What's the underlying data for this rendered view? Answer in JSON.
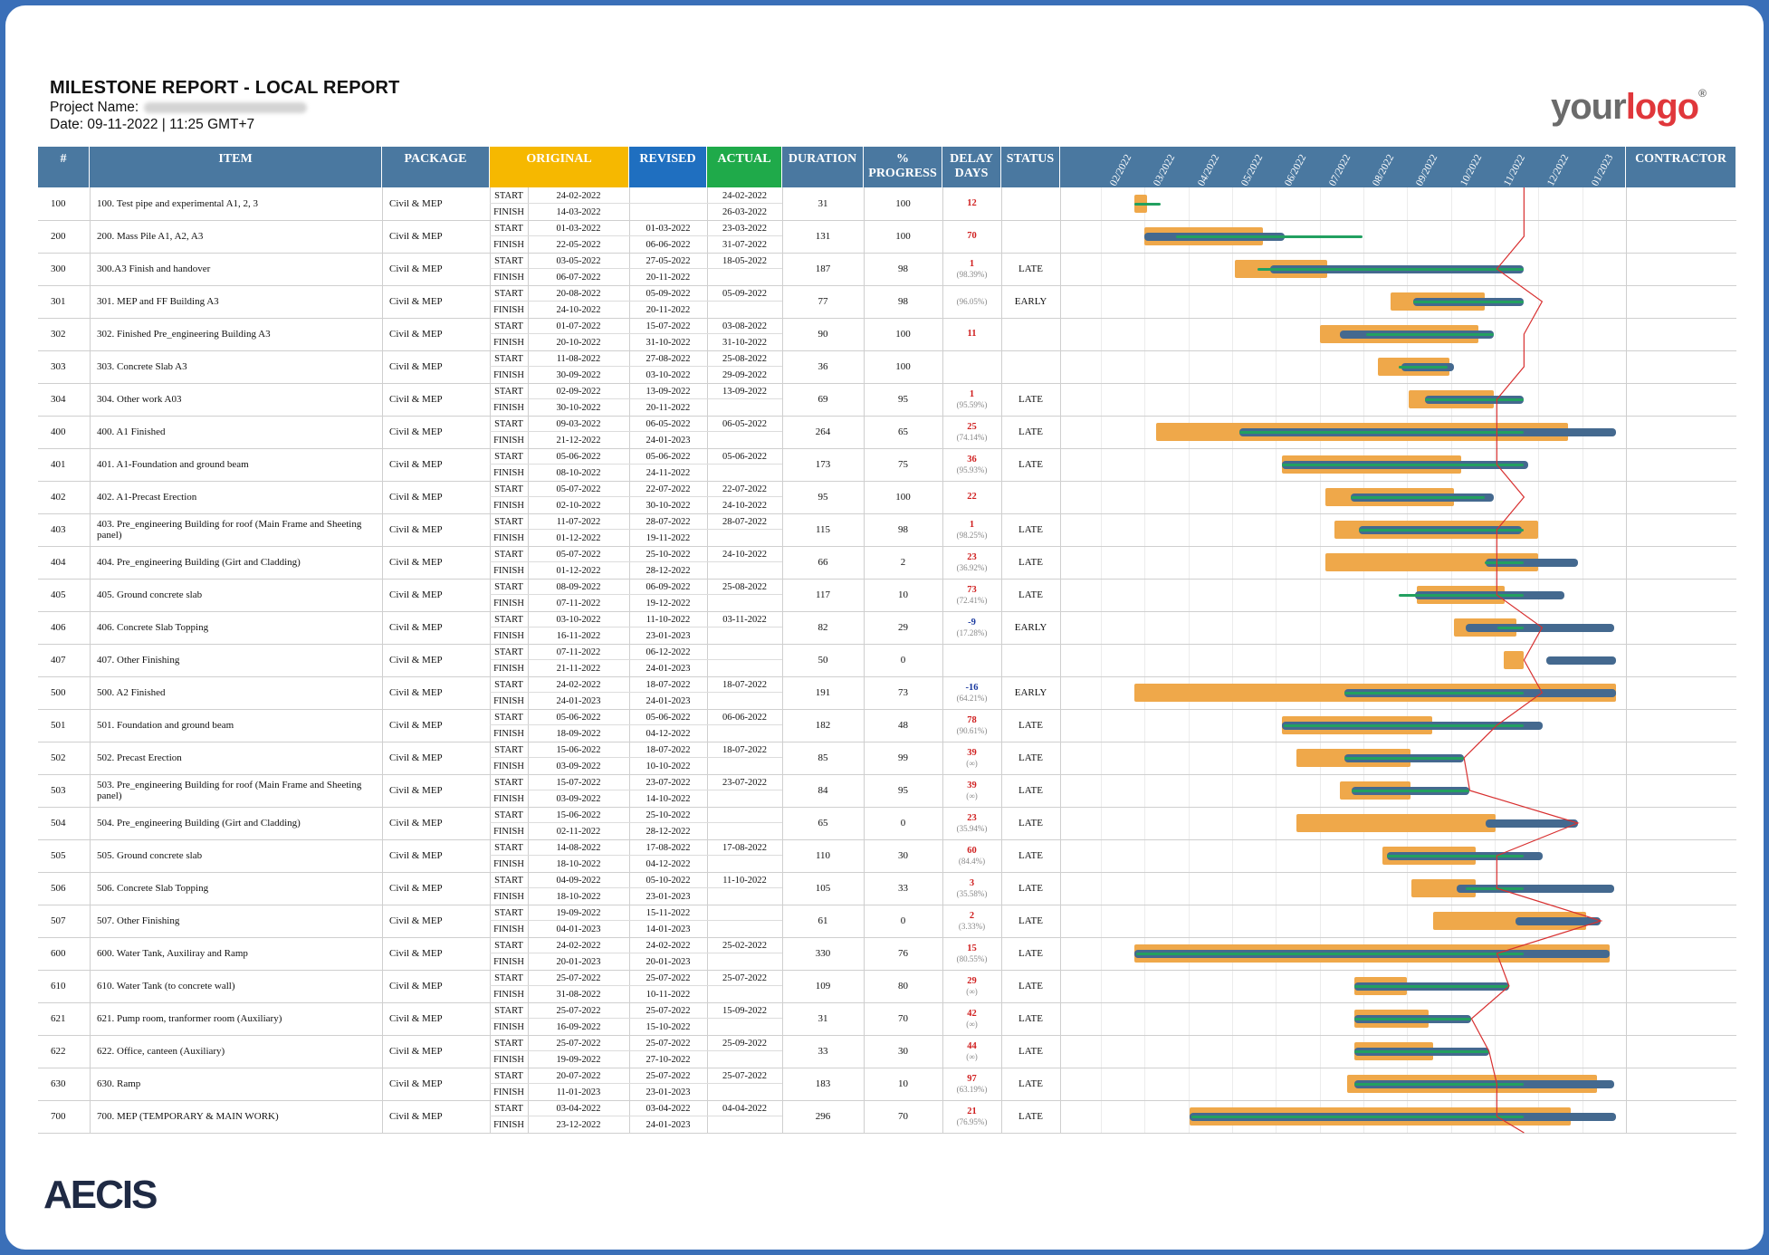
{
  "header": {
    "title": "MILESTONE REPORT - LOCAL REPORT",
    "project_label": "Project Name:",
    "date": "Date: 09-11-2022 | 11:25 GMT+7"
  },
  "logo": {
    "part1": "your",
    "part2": "logo",
    "mark": "®"
  },
  "footer_logo": "AECIS",
  "columns": {
    "num": "#",
    "item": "ITEM",
    "package": "PACKAGE",
    "original": "ORIGINAL",
    "revised": "REVISED",
    "actual": "ACTUAL",
    "duration": "DURATION",
    "progress": "% PROGRESS",
    "delay": "DELAY DAYS",
    "status": "STATUS",
    "contractor": "CONTRACTOR"
  },
  "colors": {
    "header_bg": "#4a78a0",
    "original_bg": "#f6b800",
    "revised_bg": "#1f6fc0",
    "actual_bg": "#1faa4a",
    "planned_bar": "#efa84a",
    "revised_bar": "#44698f",
    "actual_bar": "#22a060",
    "today_line": "#d83030",
    "late_text": "#d02020",
    "early_text": "#1a3aa0"
  },
  "months": [
    "02/2022",
    "03/2022",
    "04/2022",
    "05/2022",
    "06/2022",
    "07/2022",
    "08/2022",
    "09/2022",
    "10/2022",
    "11/2022",
    "12/2022",
    "01/2023"
  ],
  "labels": {
    "start": "START",
    "finish": "FINISH"
  },
  "rows": [
    {
      "num": "100",
      "item": "100. Test pipe and experimental A1, 2, 3",
      "package": "Civil & MEP",
      "os": "24-02-2022",
      "of": "14-03-2022",
      "rs": "",
      "rf": "",
      "as": "24-02-2022",
      "af": "26-03-2022",
      "dur": "31",
      "prog": "100",
      "delay": "12",
      "dpct": "",
      "status": "",
      "g": [
        0.77,
        1.05,
        null,
        null,
        0.77,
        1.37
      ]
    },
    {
      "num": "200",
      "item": "200. Mass Pile A1, A2, A3",
      "package": "Civil & MEP",
      "os": "01-03-2022",
      "of": "22-05-2022",
      "rs": "01-03-2022",
      "rf": "06-06-2022",
      "as": "23-03-2022",
      "af": "31-07-2022",
      "dur": "131",
      "prog": "100",
      "delay": "70",
      "dpct": "",
      "status": "",
      "g": [
        1.0,
        3.7,
        1.0,
        4.2,
        1.72,
        5.97
      ]
    },
    {
      "num": "300",
      "item": "300.A3 Finish and handover",
      "package": "Civil & MEP",
      "os": "03-05-2022",
      "of": "06-07-2022",
      "rs": "27-05-2022",
      "rf": "20-11-2022",
      "as": "18-05-2022",
      "af": "",
      "dur": "187",
      "prog": "98",
      "delay": "1",
      "dpct": "(98.39%)",
      "status": "LATE",
      "g": [
        3.07,
        5.17,
        3.87,
        9.67,
        3.57,
        9.67
      ]
    },
    {
      "num": "301",
      "item": "301. MEP and FF Building A3",
      "package": "Civil & MEP",
      "os": "20-08-2022",
      "of": "24-10-2022",
      "rs": "05-09-2022",
      "rf": "20-11-2022",
      "as": "05-09-2022",
      "af": "",
      "dur": "77",
      "prog": "98",
      "delay": "",
      "dpct": "(96.05%)",
      "status": "EARLY",
      "g": [
        6.63,
        8.77,
        7.13,
        9.67,
        7.13,
        9.67
      ]
    },
    {
      "num": "302",
      "item": "302. Finished Pre_engineering Building A3",
      "package": "Civil & MEP",
      "os": "01-07-2022",
      "of": "20-10-2022",
      "rs": "15-07-2022",
      "rf": "31-10-2022",
      "as": "03-08-2022",
      "af": "31-10-2022",
      "dur": "90",
      "prog": "100",
      "delay": "11",
      "dpct": "",
      "status": "",
      "g": [
        5.0,
        8.63,
        5.47,
        8.97,
        6.07,
        8.97
      ]
    },
    {
      "num": "303",
      "item": "303. Concrete Slab A3",
      "package": "Civil & MEP",
      "os": "11-08-2022",
      "of": "30-09-2022",
      "rs": "27-08-2022",
      "rf": "03-10-2022",
      "as": "25-08-2022",
      "af": "29-09-2022",
      "dur": "36",
      "prog": "100",
      "delay": "",
      "dpct": "",
      "status": "",
      "g": [
        6.33,
        7.97,
        6.87,
        8.07,
        6.8,
        7.93
      ]
    },
    {
      "num": "304",
      "item": "304. Other work A03",
      "package": "Civil & MEP",
      "os": "02-09-2022",
      "of": "30-10-2022",
      "rs": "13-09-2022",
      "rf": "20-11-2022",
      "as": "13-09-2022",
      "af": "",
      "dur": "69",
      "prog": "95",
      "delay": "1",
      "dpct": "(95.59%)",
      "status": "LATE",
      "g": [
        7.03,
        8.97,
        7.4,
        9.67,
        7.4,
        9.67
      ]
    },
    {
      "num": "400",
      "item": "400. A1 Finished",
      "package": "Civil & MEP",
      "os": "09-03-2022",
      "of": "21-12-2022",
      "rs": "06-05-2022",
      "rf": "24-01-2023",
      "as": "06-05-2022",
      "af": "",
      "dur": "264",
      "prog": "65",
      "delay": "25",
      "dpct": "(74.14%)",
      "status": "LATE",
      "g": [
        1.27,
        10.67,
        3.17,
        11.77,
        3.17,
        9.67
      ]
    },
    {
      "num": "401",
      "item": "401. A1-Foundation and ground beam",
      "package": "Civil & MEP",
      "os": "05-06-2022",
      "of": "08-10-2022",
      "rs": "05-06-2022",
      "rf": "24-11-2022",
      "as": "05-06-2022",
      "af": "",
      "dur": "173",
      "prog": "75",
      "delay": "36",
      "dpct": "(95.93%)",
      "status": "LATE",
      "g": [
        4.13,
        8.23,
        4.13,
        9.77,
        4.13,
        9.67
      ]
    },
    {
      "num": "402",
      "item": "402. A1-Precast Erection",
      "package": "Civil & MEP",
      "os": "05-07-2022",
      "of": "02-10-2022",
      "rs": "22-07-2022",
      "rf": "30-10-2022",
      "as": "22-07-2022",
      "af": "24-10-2022",
      "dur": "95",
      "prog": "100",
      "delay": "22",
      "dpct": "",
      "status": "",
      "g": [
        5.13,
        8.07,
        5.7,
        8.97,
        5.7,
        8.77
      ]
    },
    {
      "num": "403",
      "item": "403. Pre_engineering Building for roof (Main Frame and Sheeting panel)",
      "package": "Civil & MEP",
      "os": "11-07-2022",
      "of": "01-12-2022",
      "rs": "28-07-2022",
      "rf": "19-11-2022",
      "as": "28-07-2022",
      "af": "",
      "dur": "115",
      "prog": "98",
      "delay": "1",
      "dpct": "(98.25%)",
      "status": "LATE",
      "g": [
        5.33,
        10.0,
        5.9,
        9.63,
        5.9,
        9.67
      ]
    },
    {
      "num": "404",
      "item": "404. Pre_engineering Building (Girt and Cladding)",
      "package": "Civil & MEP",
      "os": "05-07-2022",
      "of": "01-12-2022",
      "rs": "25-10-2022",
      "rf": "28-12-2022",
      "as": "24-10-2022",
      "af": "",
      "dur": "66",
      "prog": "2",
      "delay": "23",
      "dpct": "(36.92%)",
      "status": "LATE",
      "g": [
        5.13,
        10.0,
        8.8,
        10.9,
        8.77,
        9.67
      ]
    },
    {
      "num": "405",
      "item": "405. Ground concrete slab",
      "package": "Civil & MEP",
      "os": "08-09-2022",
      "of": "07-11-2022",
      "rs": "06-09-2022",
      "rf": "19-12-2022",
      "as": "25-08-2022",
      "af": "",
      "dur": "117",
      "prog": "10",
      "delay": "73",
      "dpct": "(72.41%)",
      "status": "LATE",
      "g": [
        7.23,
        9.23,
        7.17,
        10.6,
        6.8,
        9.67
      ]
    },
    {
      "num": "406",
      "item": "406. Concrete Slab Topping",
      "package": "Civil & MEP",
      "os": "03-10-2022",
      "of": "16-11-2022",
      "rs": "11-10-2022",
      "rf": "23-01-2023",
      "as": "03-11-2022",
      "af": "",
      "dur": "82",
      "prog": "29",
      "delay": "-9",
      "dpct": "(17.28%)",
      "status": "EARLY",
      "g": [
        8.07,
        9.5,
        8.33,
        11.73,
        9.07,
        9.67
      ]
    },
    {
      "num": "407",
      "item": "407. Other Finishing",
      "package": "Civil & MEP",
      "os": "07-11-2022",
      "of": "21-11-2022",
      "rs": "06-12-2022",
      "rf": "24-01-2023",
      "as": "",
      "af": "",
      "dur": "50",
      "prog": "0",
      "delay": "",
      "dpct": "",
      "status": "",
      "g": [
        9.2,
        9.67,
        10.17,
        11.77,
        null,
        null
      ]
    },
    {
      "num": "500",
      "item": "500. A2 Finished",
      "package": "Civil & MEP",
      "os": "24-02-2022",
      "of": "24-01-2023",
      "rs": "18-07-2022",
      "rf": "24-01-2023",
      "as": "18-07-2022",
      "af": "",
      "dur": "191",
      "prog": "73",
      "delay": "-16",
      "dpct": "(64.21%)",
      "status": "EARLY",
      "g": [
        0.77,
        11.77,
        5.57,
        11.77,
        5.57,
        9.67
      ]
    },
    {
      "num": "501",
      "item": "501. Foundation and ground beam",
      "package": "Civil & MEP",
      "os": "05-06-2022",
      "of": "18-09-2022",
      "rs": "05-06-2022",
      "rf": "04-12-2022",
      "as": "06-06-2022",
      "af": "",
      "dur": "182",
      "prog": "48",
      "delay": "78",
      "dpct": "(90.61%)",
      "status": "LATE",
      "g": [
        4.13,
        7.57,
        4.13,
        10.1,
        4.17,
        9.67
      ]
    },
    {
      "num": "502",
      "item": "502. Precast Erection",
      "package": "Civil & MEP",
      "os": "15-06-2022",
      "of": "03-09-2022",
      "rs": "18-07-2022",
      "rf": "10-10-2022",
      "as": "18-07-2022",
      "af": "",
      "dur": "85",
      "prog": "99",
      "delay": "39",
      "dpct": "(∞)",
      "status": "LATE",
      "g": [
        4.47,
        7.07,
        5.57,
        8.3,
        5.57,
        8.3
      ]
    },
    {
      "num": "503",
      "item": "503. Pre_engineering Building for roof (Main Frame and Sheeting panel)",
      "package": "Civil & MEP",
      "os": "15-07-2022",
      "of": "03-09-2022",
      "rs": "23-07-2022",
      "rf": "14-10-2022",
      "as": "23-07-2022",
      "af": "",
      "dur": "84",
      "prog": "95",
      "delay": "39",
      "dpct": "(∞)",
      "status": "LATE",
      "g": [
        5.47,
        7.07,
        5.73,
        8.43,
        5.73,
        8.43
      ]
    },
    {
      "num": "504",
      "item": "504. Pre_engineering Building (Girt and Cladding)",
      "package": "Civil & MEP",
      "os": "15-06-2022",
      "of": "02-11-2022",
      "rs": "25-10-2022",
      "rf": "28-12-2022",
      "as": "",
      "af": "",
      "dur": "65",
      "prog": "0",
      "delay": "23",
      "dpct": "(35.94%)",
      "status": "LATE",
      "g": [
        4.47,
        9.03,
        8.8,
        10.9,
        null,
        null
      ]
    },
    {
      "num": "505",
      "item": "505. Ground concrete slab",
      "package": "Civil & MEP",
      "os": "14-08-2022",
      "of": "18-10-2022",
      "rs": "17-08-2022",
      "rf": "04-12-2022",
      "as": "17-08-2022",
      "af": "",
      "dur": "110",
      "prog": "30",
      "delay": "60",
      "dpct": "(84.4%)",
      "status": "LATE",
      "g": [
        6.43,
        8.57,
        6.53,
        10.1,
        6.53,
        9.67
      ]
    },
    {
      "num": "506",
      "item": "506. Concrete Slab Topping",
      "package": "Civil & MEP",
      "os": "04-09-2022",
      "of": "18-10-2022",
      "rs": "05-10-2022",
      "rf": "23-01-2023",
      "as": "11-10-2022",
      "af": "",
      "dur": "105",
      "prog": "33",
      "delay": "3",
      "dpct": "(35.58%)",
      "status": "LATE",
      "g": [
        7.1,
        8.57,
        8.13,
        11.73,
        8.33,
        9.67
      ]
    },
    {
      "num": "507",
      "item": "507. Other Finishing",
      "package": "Civil & MEP",
      "os": "19-09-2022",
      "of": "04-01-2023",
      "rs": "15-11-2022",
      "rf": "14-01-2023",
      "as": "",
      "af": "",
      "dur": "61",
      "prog": "0",
      "delay": "2",
      "dpct": "(3.33%)",
      "status": "LATE",
      "g": [
        7.6,
        11.1,
        9.47,
        11.43,
        null,
        null
      ]
    },
    {
      "num": "600",
      "item": "600. Water Tank, Auxiliray and Ramp",
      "package": "Civil & MEP",
      "os": "24-02-2022",
      "of": "20-01-2023",
      "rs": "24-02-2022",
      "rf": "20-01-2023",
      "as": "25-02-2022",
      "af": "",
      "dur": "330",
      "prog": "76",
      "delay": "15",
      "dpct": "(80.55%)",
      "status": "LATE",
      "g": [
        0.77,
        11.63,
        0.77,
        11.63,
        0.8,
        9.67
      ]
    },
    {
      "num": "610",
      "item": "610. Water Tank (to concrete wall)",
      "package": "Civil & MEP",
      "os": "25-07-2022",
      "of": "31-08-2022",
      "rs": "25-07-2022",
      "rf": "10-11-2022",
      "as": "25-07-2022",
      "af": "",
      "dur": "109",
      "prog": "80",
      "delay": "29",
      "dpct": "(∞)",
      "status": "LATE",
      "g": [
        5.8,
        7.0,
        5.8,
        9.33,
        5.8,
        9.33
      ]
    },
    {
      "num": "621",
      "item": "621. Pump room, tranformer room (Auxiliary)",
      "package": "Civil & MEP",
      "os": "25-07-2022",
      "of": "16-09-2022",
      "rs": "25-07-2022",
      "rf": "15-10-2022",
      "as": "15-09-2022",
      "af": "",
      "dur": "31",
      "prog": "70",
      "delay": "42",
      "dpct": "(∞)",
      "status": "LATE",
      "g": [
        5.8,
        7.5,
        5.8,
        8.47,
        5.8,
        8.47
      ]
    },
    {
      "num": "622",
      "item": "622. Office, canteen (Auxiliary)",
      "package": "Civil & MEP",
      "os": "25-07-2022",
      "of": "19-09-2022",
      "rs": "25-07-2022",
      "rf": "27-10-2022",
      "as": "25-09-2022",
      "af": "",
      "dur": "33",
      "prog": "30",
      "delay": "44",
      "dpct": "(∞)",
      "status": "LATE",
      "g": [
        5.8,
        7.6,
        5.8,
        8.87,
        5.8,
        8.87
      ]
    },
    {
      "num": "630",
      "item": "630. Ramp",
      "package": "Civil & MEP",
      "os": "20-07-2022",
      "of": "11-01-2023",
      "rs": "25-07-2022",
      "rf": "23-01-2023",
      "as": "25-07-2022",
      "af": "",
      "dur": "183",
      "prog": "10",
      "delay": "97",
      "dpct": "(63.19%)",
      "status": "LATE",
      "g": [
        5.63,
        11.33,
        5.8,
        11.73,
        5.8,
        9.67
      ]
    },
    {
      "num": "700",
      "item": "700. MEP (TEMPORARY & MAIN WORK)",
      "package": "Civil & MEP",
      "os": "03-04-2022",
      "of": "23-12-2022",
      "rs": "03-04-2022",
      "rf": "24-01-2023",
      "as": "04-04-2022",
      "af": "",
      "dur": "296",
      "prog": "70",
      "delay": "21",
      "dpct": "(76.95%)",
      "status": "LATE",
      "g": [
        2.03,
        10.73,
        2.03,
        11.77,
        2.07,
        9.67
      ]
    }
  ]
}
